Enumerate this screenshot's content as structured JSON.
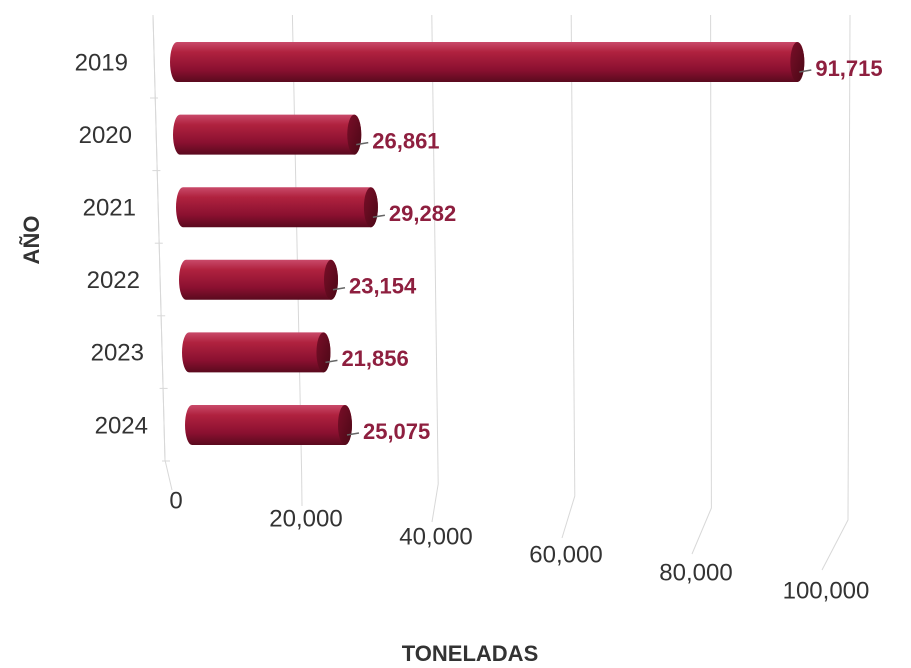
{
  "chart_data": {
    "type": "bar",
    "orientation": "horizontal",
    "three_d": true,
    "categories": [
      "2019",
      "2020",
      "2021",
      "2022",
      "2023",
      "2024"
    ],
    "values": [
      91715,
      26861,
      29282,
      23154,
      21856,
      25075
    ],
    "value_labels": [
      "91,715",
      "26,861",
      "29,282",
      "23,154",
      "21,856",
      "25,075"
    ],
    "color": "#a5173f",
    "xlim": [
      0,
      100000
    ],
    "xticks": [
      0,
      {
        "value": 20000,
        "label": "20,000"
      },
      {
        "value": 40000,
        "label": "40,000"
      },
      {
        "value": 60000,
        "label": "60,000"
      },
      {
        "value": 80000,
        "label": "80,000"
      },
      {
        "value": 100000,
        "label": "100,000"
      }
    ],
    "xlabel": "TONELADAS",
    "ylabel": "AÑO",
    "grid": true
  }
}
